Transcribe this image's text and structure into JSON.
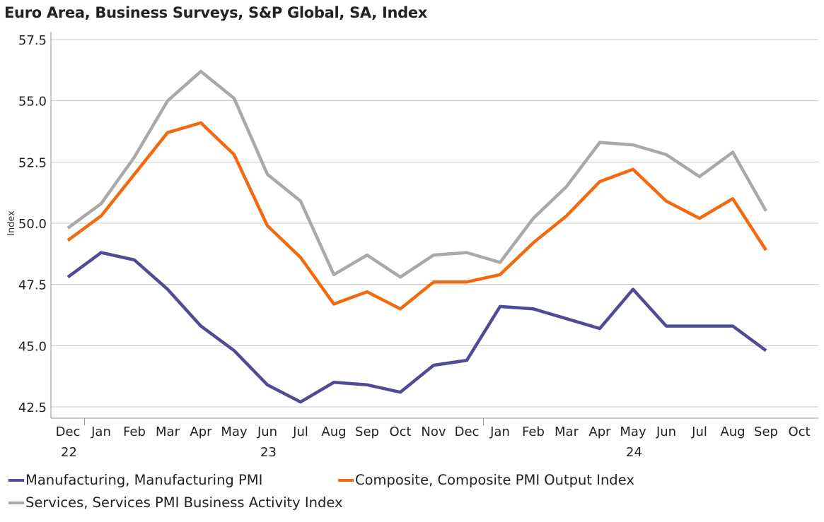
{
  "title": "Euro Area, Business Surveys, S&P Global, SA, Index",
  "chart_data": {
    "type": "line",
    "title": "Euro Area, Business Surveys, S&P Global, SA, Index",
    "ylabel": "Index",
    "xlabel": "",
    "ylim": [
      42.0,
      57.5
    ],
    "yticks": [
      42.5,
      45.0,
      47.5,
      50.0,
      52.5,
      55.0,
      57.5
    ],
    "ytick_labels": [
      "42.5",
      "45.0",
      "47.5",
      "50.0",
      "52.5",
      "55.0",
      "57.5"
    ],
    "categories": [
      "Dec",
      "Jan",
      "Feb",
      "Mar",
      "Apr",
      "May",
      "Jun",
      "Jul",
      "Aug",
      "Sep",
      "Oct",
      "Nov",
      "Dec",
      "Jan",
      "Feb",
      "Mar",
      "Apr",
      "May",
      "Jun",
      "Jul",
      "Aug",
      "Sep",
      "Oct"
    ],
    "year_labels": [
      {
        "index": 0,
        "label": "22"
      },
      {
        "index": 6,
        "label": "23"
      },
      {
        "index": 17,
        "label": "24"
      }
    ],
    "series": [
      {
        "name": "Manufacturing, Manufacturing PMI",
        "color": "#4f4b95",
        "values": [
          47.8,
          48.8,
          48.5,
          47.3,
          45.8,
          44.8,
          43.4,
          42.7,
          43.5,
          43.4,
          43.1,
          44.2,
          44.4,
          46.6,
          46.5,
          46.1,
          45.7,
          47.3,
          45.8,
          45.8,
          45.8,
          44.8,
          null
        ]
      },
      {
        "name": "Composite, Composite PMI Output Index",
        "color": "#f26a10",
        "values": [
          49.3,
          50.3,
          52.0,
          53.7,
          54.1,
          52.8,
          49.9,
          48.6,
          46.7,
          47.2,
          46.5,
          47.6,
          47.6,
          47.9,
          49.2,
          50.3,
          51.7,
          52.2,
          50.9,
          50.2,
          51.0,
          48.9,
          null
        ]
      },
      {
        "name": "Services, Services PMI Business Activity Index",
        "color": "#a9a9a9",
        "values": [
          49.8,
          50.8,
          52.7,
          55.0,
          56.2,
          55.1,
          52.0,
          50.9,
          47.9,
          48.7,
          47.8,
          48.7,
          48.8,
          48.4,
          50.2,
          51.5,
          53.3,
          53.2,
          52.8,
          51.9,
          52.9,
          50.5,
          null
        ]
      }
    ],
    "legend": "bottom",
    "grid": true
  },
  "legend_items": [
    {
      "label": "Manufacturing, Manufacturing PMI",
      "color": "#4f4b95"
    },
    {
      "label": "Composite, Composite PMI Output Index",
      "color": "#f26a10"
    },
    {
      "label": "Services, Services PMI Business Activity Index",
      "color": "#a9a9a9"
    }
  ]
}
